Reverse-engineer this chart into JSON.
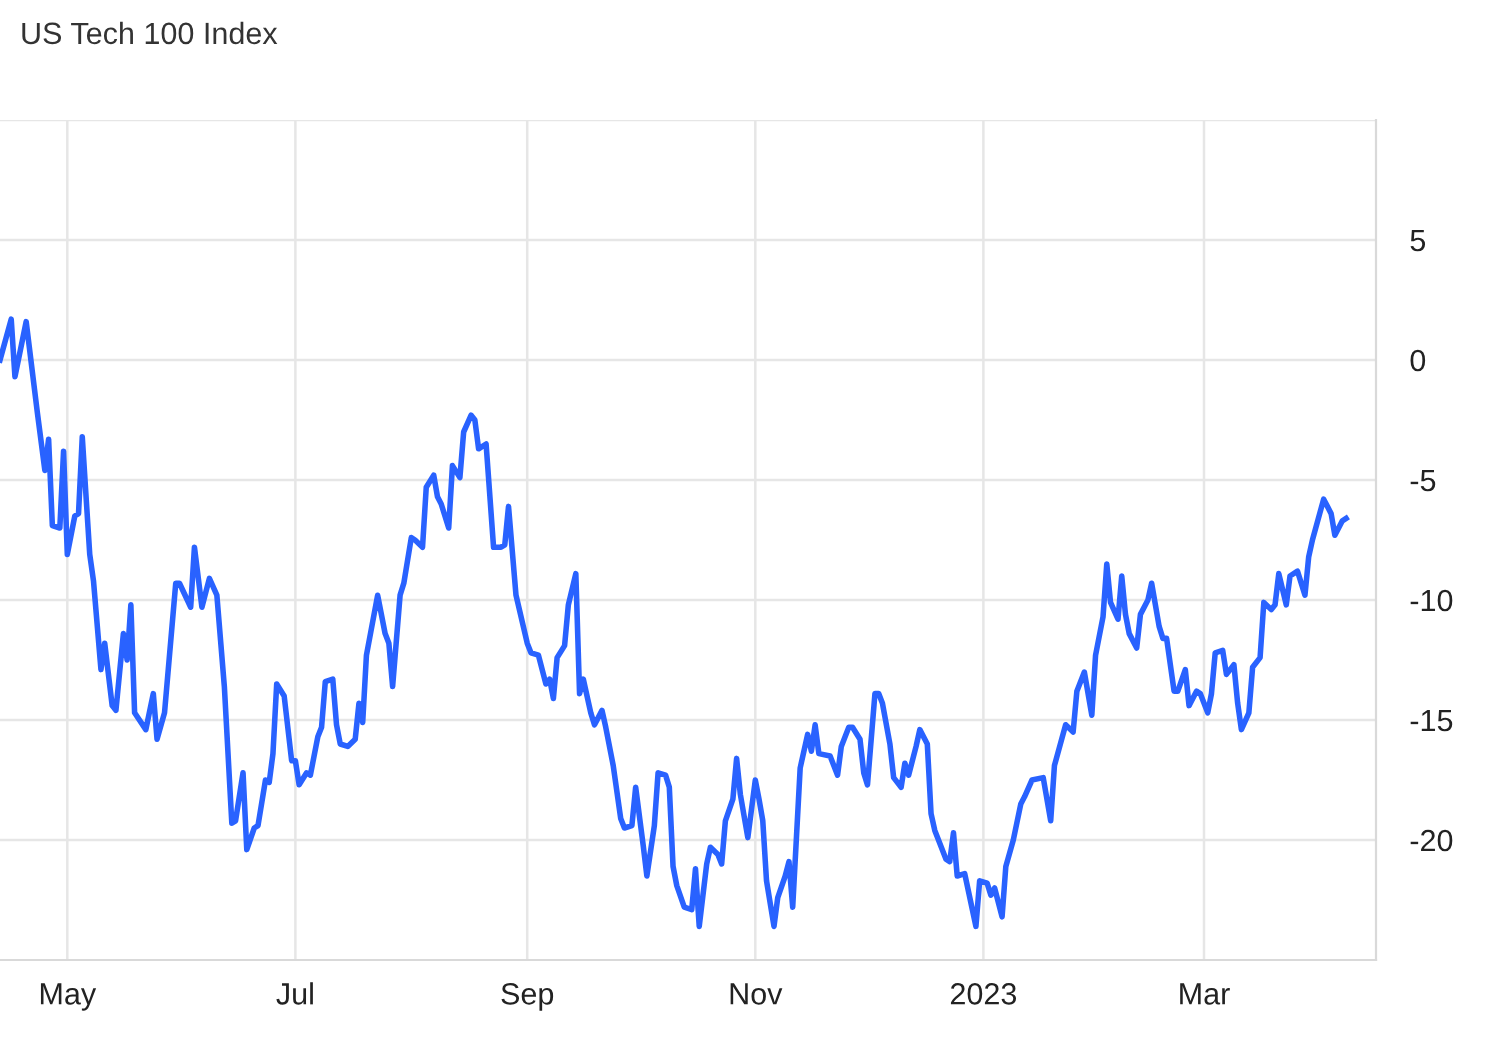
{
  "chart_data": {
    "type": "line",
    "title": "US Tech 100 Index",
    "x": [
      "2022-04-13",
      "2022-04-16",
      "2022-04-17",
      "2022-04-20",
      "2022-04-23",
      "2022-04-25",
      "2022-04-26",
      "2022-04-27",
      "2022-04-29",
      "2022-04-30",
      "2022-05-01",
      "2022-05-03",
      "2022-05-04",
      "2022-05-05",
      "2022-05-07",
      "2022-05-08",
      "2022-05-10",
      "2022-05-11",
      "2022-05-13",
      "2022-05-14",
      "2022-05-16",
      "2022-05-17",
      "2022-05-18",
      "2022-05-19",
      "2022-05-22",
      "2022-05-24",
      "2022-05-25",
      "2022-05-27",
      "2022-05-30",
      "2022-05-31",
      "2022-06-03",
      "2022-06-04",
      "2022-06-06",
      "2022-06-08",
      "2022-06-10",
      "2022-06-12",
      "2022-06-14",
      "2022-06-15",
      "2022-06-17",
      "2022-06-18",
      "2022-06-20",
      "2022-06-21",
      "2022-06-23",
      "2022-06-24",
      "2022-06-25",
      "2022-06-26",
      "2022-06-28",
      "2022-06-30",
      "2022-07-01",
      "2022-07-02",
      "2022-07-04",
      "2022-07-05",
      "2022-07-07",
      "2022-07-08",
      "2022-07-09",
      "2022-07-11",
      "2022-07-12",
      "2022-07-13",
      "2022-07-15",
      "2022-07-17",
      "2022-07-18",
      "2022-07-19",
      "2022-07-20",
      "2022-07-23",
      "2022-07-25",
      "2022-07-26",
      "2022-07-27",
      "2022-07-29",
      "2022-07-30",
      "2022-08-01",
      "2022-08-02",
      "2022-08-04",
      "2022-08-05",
      "2022-08-07",
      "2022-08-08",
      "2022-08-09",
      "2022-08-11",
      "2022-08-12",
      "2022-08-14",
      "2022-08-15",
      "2022-08-17",
      "2022-08-18",
      "2022-08-19",
      "2022-08-21",
      "2022-08-23",
      "2022-08-25",
      "2022-08-26",
      "2022-08-27",
      "2022-08-29",
      "2022-09-01",
      "2022-09-02",
      "2022-09-04",
      "2022-09-06",
      "2022-09-07",
      "2022-09-08",
      "2022-09-09",
      "2022-09-11",
      "2022-09-12",
      "2022-09-14",
      "2022-09-15",
      "2022-09-16",
      "2022-09-18",
      "2022-09-19",
      "2022-09-21",
      "2022-09-22",
      "2022-09-24",
      "2022-09-26",
      "2022-09-27",
      "2022-09-29",
      "2022-09-30",
      "2022-10-02",
      "2022-10-03",
      "2022-10-05",
      "2022-10-06",
      "2022-10-08",
      "2022-10-09",
      "2022-10-10",
      "2022-10-11",
      "2022-10-13",
      "2022-10-15",
      "2022-10-16",
      "2022-10-17",
      "2022-10-19",
      "2022-10-20",
      "2022-10-22",
      "2022-10-23",
      "2022-10-24",
      "2022-10-26",
      "2022-10-27",
      "2022-10-28",
      "2022-10-30",
      "2022-11-01",
      "2022-11-02",
      "2022-11-03",
      "2022-11-04",
      "2022-11-06",
      "2022-11-07",
      "2022-11-09",
      "2022-11-10",
      "2022-11-11",
      "2022-11-13",
      "2022-11-15",
      "2022-11-16",
      "2022-11-17",
      "2022-11-18",
      "2022-11-21",
      "2022-11-23",
      "2022-11-24",
      "2022-11-26",
      "2022-11-27",
      "2022-11-29",
      "2022-11-30",
      "2022-12-01",
      "2022-12-03",
      "2022-12-04",
      "2022-12-05",
      "2022-12-07",
      "2022-12-08",
      "2022-12-10",
      "2022-12-11",
      "2022-12-12",
      "2022-12-14",
      "2022-12-15",
      "2022-12-17",
      "2022-12-18",
      "2022-12-19",
      "2022-12-22",
      "2022-12-23",
      "2022-12-24",
      "2022-12-25",
      "2022-12-27",
      "2022-12-30",
      "2022-12-31",
      "2023-01-02",
      "2023-01-03",
      "2023-01-04",
      "2023-01-06",
      "2023-01-07",
      "2023-01-09",
      "2023-01-11",
      "2023-01-12",
      "2023-01-14",
      "2023-01-17",
      "2023-01-19",
      "2023-01-20",
      "2023-01-23",
      "2023-01-25",
      "2023-01-26",
      "2023-01-28",
      "2023-01-30",
      "2023-01-31",
      "2023-02-02",
      "2023-02-03",
      "2023-02-04",
      "2023-02-06",
      "2023-02-07",
      "2023-02-08",
      "2023-02-09",
      "2023-02-11",
      "2023-02-12",
      "2023-02-14",
      "2023-02-15",
      "2023-02-17",
      "2023-02-18",
      "2023-02-19",
      "2023-02-21",
      "2023-02-22",
      "2023-02-24",
      "2023-02-25",
      "2023-02-27",
      "2023-02-28",
      "2023-03-02",
      "2023-03-03",
      "2023-03-04",
      "2023-03-06",
      "2023-03-07",
      "2023-03-09",
      "2023-03-10",
      "2023-03-11",
      "2023-03-13",
      "2023-03-14",
      "2023-03-16",
      "2023-03-17",
      "2023-03-19",
      "2023-03-20",
      "2023-03-21",
      "2023-03-23",
      "2023-03-24",
      "2023-03-26",
      "2023-03-28",
      "2023-03-29",
      "2023-03-30",
      "2023-04-02",
      "2023-04-03",
      "2023-04-04",
      "2023-04-05",
      "2023-04-07",
      "2023-04-08"
    ],
    "series": [
      {
        "color": "#2962ff",
        "values": [
          0,
          1.7,
          -0.7,
          1.6,
          -2.2,
          -4.6,
          -3.3,
          -6.9,
          -7,
          -3.8,
          -8.1,
          -6.5,
          -6.4,
          -3.2,
          -8.1,
          -9.2,
          -12.9,
          -11.8,
          -14.4,
          -14.6,
          -11.4,
          -12.5,
          -10.2,
          -14.7,
          -15.4,
          -13.9,
          -15.8,
          -14.7,
          -9.3,
          -9.3,
          -10.3,
          -7.8,
          -10.3,
          -9.1,
          -9.8,
          -13.6,
          -19.3,
          -19.2,
          -17.2,
          -20.4,
          -19.5,
          -19.4,
          -17.5,
          -17.6,
          -16.4,
          -13.5,
          -14,
          -16.7,
          -16.7,
          -17.7,
          -17.2,
          -17.3,
          -15.7,
          -15.3,
          -13.4,
          -13.3,
          -15.2,
          -16,
          -16.1,
          -15.8,
          -14.3,
          -15.1,
          -12.3,
          -9.8,
          -11.4,
          -11.8,
          -13.6,
          -9.8,
          -9.3,
          -7.4,
          -7.5,
          -7.8,
          -5.3,
          -4.8,
          -5.7,
          -6,
          -7,
          -4.4,
          -4.9,
          -3,
          -2.3,
          -2.5,
          -3.7,
          -3.5,
          -7.8,
          -7.8,
          -7.7,
          -6.1,
          -9.8,
          -11.8,
          -12.2,
          -12.3,
          -13.5,
          -13.3,
          -14.1,
          -12.4,
          -11.9,
          -10.2,
          -8.9,
          -13.9,
          -13.3,
          -14.7,
          -15.2,
          -14.6,
          -15.3,
          -16.9,
          -19.1,
          -19.5,
          -19.4,
          -17.8,
          -20.2,
          -21.5,
          -19.4,
          -17.2,
          -17.3,
          -17.8,
          -21.1,
          -21.9,
          -22.8,
          -22.9,
          -21.2,
          -23.6,
          -21,
          -20.3,
          -20.6,
          -21,
          -19.2,
          -18.3,
          -16.6,
          -18.1,
          -19.9,
          -17.5,
          -18.3,
          -19.2,
          -21.7,
          -23.6,
          -22.4,
          -21.5,
          -20.9,
          -22.8,
          -17,
          -15.6,
          -16.3,
          -15.2,
          -16.4,
          -16.5,
          -17.3,
          -16.1,
          -15.3,
          -15.3,
          -15.8,
          -17.2,
          -17.7,
          -13.9,
          -13.9,
          -14.3,
          -16,
          -17.4,
          -17.8,
          -16.8,
          -17.3,
          -16.1,
          -15.4,
          -16,
          -18.9,
          -19.6,
          -20.8,
          -20.9,
          -19.7,
          -21.5,
          -21.4,
          -23.6,
          -21.7,
          -21.8,
          -22.3,
          -22,
          -23.2,
          -21.1,
          -20,
          -18.5,
          -18.2,
          -17.5,
          -17.4,
          -19.2,
          -16.9,
          -15.2,
          -15.5,
          -13.8,
          -13,
          -14.8,
          -12.3,
          -10.7,
          -8.5,
          -10.1,
          -10.8,
          -9,
          -10.6,
          -11.4,
          -12,
          -10.6,
          -10,
          -9.3,
          -11.1,
          -11.6,
          -11.6,
          -13.8,
          -13.8,
          -12.9,
          -14.4,
          -13.8,
          -13.9,
          -14.7,
          -13.9,
          -12.2,
          -12.1,
          -13.1,
          -12.7,
          -14.3,
          -15.4,
          -14.7,
          -12.8,
          -12.4,
          -10.1,
          -10.4,
          -10.2,
          -8.9,
          -10.2,
          -9,
          -8.8,
          -9.8,
          -8.2,
          -7.5,
          -5.8,
          -6.1,
          -6.4,
          -7.3,
          -6.7,
          -6.6
        ]
      }
    ],
    "xlim": [
      "2022-04-13",
      "2023-04-16"
    ],
    "xticks": [
      {
        "value": "2022-05-01",
        "label": "May"
      },
      {
        "value": "2022-07-01",
        "label": "Jul"
      },
      {
        "value": "2022-09-01",
        "label": "Sep"
      },
      {
        "value": "2022-11-01",
        "label": "Nov"
      },
      {
        "value": "2023-01-01",
        "label": "2023"
      },
      {
        "value": "2023-03-01",
        "label": "Mar"
      }
    ],
    "ylim": [
      -25,
      10
    ],
    "yticks": [
      -20,
      -15,
      -10,
      -5,
      0,
      5,
      {
        "value": 10,
        "label": null
      }
    ],
    "grid": true,
    "line_style": "solid",
    "marker": "none"
  }
}
